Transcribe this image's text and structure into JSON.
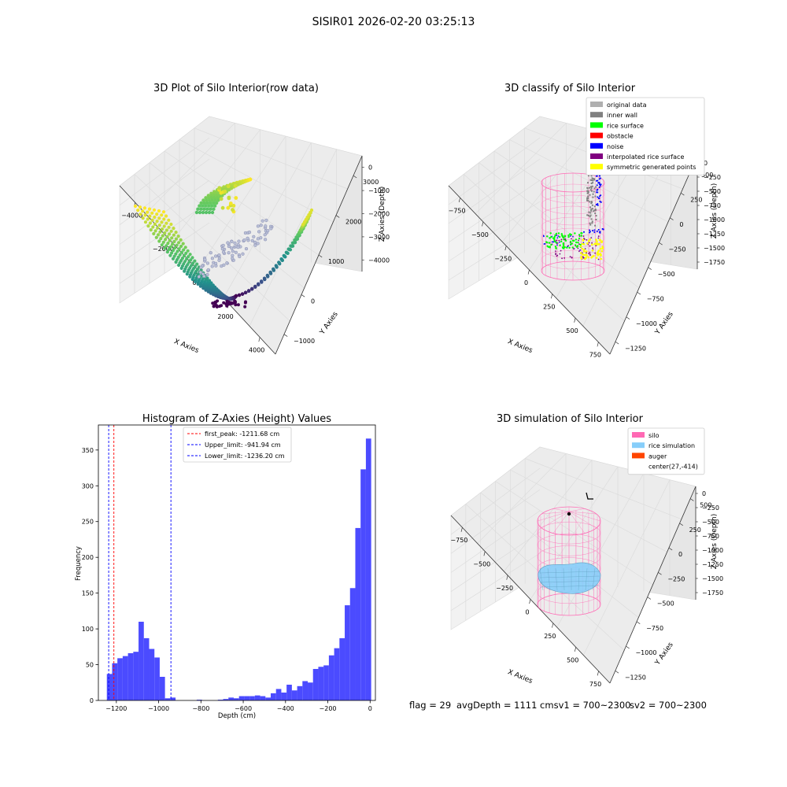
{
  "suptitle": "SISIR01 2026-02-20 03:25:13",
  "footer": {
    "flag": "flag = 29",
    "avg": "avgDepth = 1111 cmsv1 = 700~2300",
    "sv2": "sv2 = 700~2300"
  },
  "colors": {
    "hist": "#4b4bff",
    "first_peak": "#ff0000",
    "limits": "#0000ff",
    "silo": "#ff69b4",
    "rice_sim": "#87cefa",
    "auger": "#ff4500",
    "original": "#b0b0b0",
    "inner_wall": "#808080",
    "rice_surface": "#00ff00",
    "obstacle": "#ff0000",
    "noise": "#0000ff",
    "interp_surface": "#800080",
    "symmetric": "#ffff00"
  },
  "chart_data": [
    {
      "type": "scatter",
      "title": "3D Plot of Silo Interior(row data)",
      "xlabel": "X Axies",
      "ylabel": "Y Axies",
      "zlabel": "Z Axies (Depth)",
      "xticks": [
        "−4000",
        "−2000",
        "0",
        "2000",
        "4000"
      ],
      "yticks": [
        "−1000",
        "0",
        "1000",
        "2000",
        "3000"
      ],
      "zticks": [
        "0",
        "−1000",
        "−2000",
        "−3000",
        "−4000"
      ],
      "xlim": [
        -4500,
        4500
      ],
      "ylim": [
        -1200,
        3500
      ],
      "zlim": [
        -4500,
        0
      ],
      "colormap": "viridis"
    },
    {
      "type": "scatter",
      "title": "3D classify of Silo Interior",
      "xlabel": "X Axies",
      "ylabel": "Y Axies",
      "zlabel": "Z Axies (Depth)",
      "xticks": [
        "−750",
        "−500",
        "−250",
        "0",
        "250",
        "500",
        "750"
      ],
      "yticks": [
        "−1250",
        "−1000",
        "−750",
        "−500",
        "−250",
        "0",
        "250",
        "500"
      ],
      "zticks": [
        "0",
        "−250",
        "−500",
        "−750",
        "−1000",
        "−1250",
        "−1500",
        "−1750"
      ],
      "legend": [
        "original data",
        "inner wall",
        "rice surface",
        "obstacle",
        "noise",
        "interpolated rice surface",
        "symmetric generated points"
      ],
      "legend_loc": "upper right"
    },
    {
      "type": "bar",
      "title": "Histogram of Z-Axies (Height) Values",
      "xlabel": "Depth (cm)",
      "ylabel": "Frequency",
      "xlim": [
        -1285,
        25
      ],
      "ylim": [
        0,
        385
      ],
      "xticks": [
        -1200,
        -1000,
        -800,
        -600,
        -400,
        -200,
        0
      ],
      "xtick_labels": [
        "−1200",
        "−1000",
        "−800",
        "−600",
        "−400",
        "−200",
        "0"
      ],
      "yticks": [
        0,
        50,
        100,
        150,
        200,
        250,
        300,
        350
      ],
      "bin_start": -1245,
      "bin_width": 25,
      "values": [
        37,
        52,
        59,
        62,
        66,
        68,
        110,
        87,
        72,
        60,
        33,
        3,
        4,
        0,
        0,
        0,
        0,
        1,
        0,
        0,
        0,
        1,
        2,
        4,
        3,
        6,
        6,
        6,
        7,
        6,
        4,
        10,
        16,
        11,
        22,
        14,
        20,
        27,
        25,
        44,
        47,
        49,
        63,
        73,
        87,
        133,
        157,
        241,
        323,
        366
      ],
      "vlines": [
        {
          "label": "first_peak: -1211.68 cm",
          "x": -1211.68,
          "color": "#ff0000"
        },
        {
          "label": "Upper_limit: -941.94 cm",
          "x": -941.94,
          "color": "#0000ff"
        },
        {
          "label": "Lower_limit: -1236.20 cm",
          "x": -1236.2,
          "color": "#0000ff"
        }
      ],
      "legend_loc": "upper center"
    },
    {
      "type": "scatter",
      "title": "3D simulation of Silo Interior",
      "xlabel": "X Axies",
      "ylabel": "Y Axies",
      "zlabel": "Z Axies (Depth)",
      "xticks": [
        "−750",
        "−500",
        "−250",
        "0",
        "250",
        "500",
        "750"
      ],
      "yticks": [
        "−1250",
        "−1000",
        "−750",
        "−500",
        "−250",
        "0",
        "250",
        "500"
      ],
      "zticks": [
        "0",
        "−250",
        "−500",
        "−750",
        "−1000",
        "−1250",
        "−1500",
        "−1750"
      ],
      "legend": [
        "silo",
        "rice simulation",
        "auger",
        "center(27,-414)"
      ],
      "legend_loc": "upper right"
    }
  ]
}
